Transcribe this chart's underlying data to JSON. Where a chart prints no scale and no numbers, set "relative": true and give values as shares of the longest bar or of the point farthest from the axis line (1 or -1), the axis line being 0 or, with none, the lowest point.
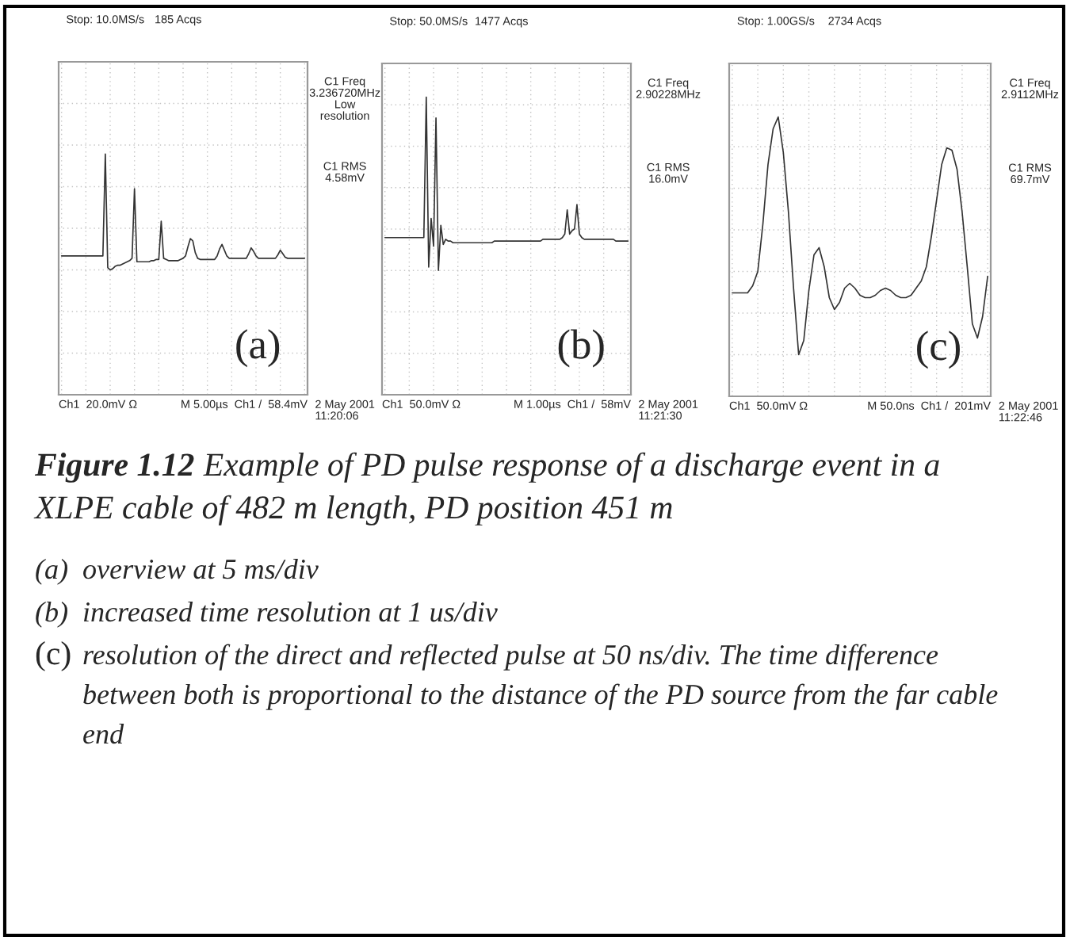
{
  "chart_data": [
    {
      "type": "line",
      "relative": true,
      "color": "#333333",
      "grid": true,
      "categories": [
        null,
        null,
        null,
        null,
        null,
        null,
        null,
        null,
        null,
        null,
        null,
        null,
        null,
        null,
        null,
        null,
        null,
        null,
        null,
        null,
        null,
        null,
        null,
        null,
        null,
        null,
        null,
        null,
        null,
        null,
        null,
        null,
        null,
        null,
        null,
        null,
        null,
        null,
        null,
        null,
        null,
        null,
        null,
        null,
        null,
        null,
        null,
        null,
        null,
        null,
        null,
        null,
        null,
        null,
        null,
        null,
        null,
        null,
        null,
        null,
        null,
        null,
        null,
        null,
        null,
        null,
        null,
        null,
        null,
        null,
        null,
        null,
        null,
        null,
        null,
        null,
        null,
        null,
        null,
        null,
        null,
        null,
        null,
        null,
        null,
        null,
        null,
        null,
        null,
        null,
        null,
        null,
        null,
        null,
        null,
        null,
        null,
        null,
        null,
        null,
        null
      ],
      "values": [
        0.12,
        0.12,
        0.12,
        0.12,
        0.12,
        0.12,
        0.12,
        0.12,
        0.12,
        0.12,
        0.12,
        0.12,
        0.12,
        0.12,
        0.12,
        0.12,
        0.12,
        0.12,
        1.0,
        0.02,
        0,
        0.01,
        0.03,
        0.04,
        0.04,
        0.05,
        0.06,
        0.07,
        0.08,
        0.1,
        0.7,
        0.07,
        0.07,
        0.07,
        0.07,
        0.07,
        0.07,
        0.08,
        0.08,
        0.09,
        0.09,
        0.42,
        0.1,
        0.09,
        0.08,
        0.08,
        0.08,
        0.08,
        0.08,
        0.09,
        0.1,
        0.12,
        0.2,
        0.27,
        0.25,
        0.15,
        0.1,
        0.09,
        0.09,
        0.09,
        0.09,
        0.09,
        0.09,
        0.09,
        0.12,
        0.18,
        0.22,
        0.17,
        0.12,
        0.1,
        0.1,
        0.1,
        0.1,
        0.1,
        0.1,
        0.1,
        0.1,
        0.14,
        0.19,
        0.16,
        0.12,
        0.1,
        0.1,
        0.1,
        0.1,
        0.1,
        0.1,
        0.1,
        0.1,
        0.13,
        0.17,
        0.14,
        0.11,
        0.1,
        0.1,
        0.1,
        0.1,
        0.1,
        0.1,
        0.1,
        0.1
      ],
      "annotations": [
        "Stop: 10.0MS/s",
        "185 Acqs",
        "C1 Freq\n3.236720MHz\nLow\nresolution",
        "C1 RMS\n4.58mV",
        "Ch1  20.0mV Ω",
        "M 5.00µs  Ch1 /  58.4mV",
        "2 May 2001\n11:20:06",
        "(a)"
      ]
    },
    {
      "type": "line",
      "relative": true,
      "color": "#333333",
      "grid": true,
      "categories": [
        null,
        null,
        null,
        null,
        null,
        null,
        null,
        null,
        null,
        null,
        null,
        null,
        null,
        null,
        null,
        null,
        null,
        null,
        null,
        null,
        null,
        null,
        null,
        null,
        null,
        null,
        null,
        null,
        null,
        null,
        null,
        null,
        null,
        null,
        null,
        null,
        null,
        null,
        null,
        null,
        null,
        null,
        null,
        null,
        null,
        null,
        null,
        null,
        null,
        null,
        null,
        null,
        null,
        null,
        null,
        null,
        null,
        null,
        null,
        null,
        null,
        null,
        null,
        null,
        null,
        null,
        null,
        null,
        null,
        null,
        null,
        null,
        null,
        null,
        null,
        null,
        null,
        null,
        null,
        null,
        null,
        null,
        null,
        null,
        null,
        null,
        null,
        null,
        null,
        null,
        null,
        null,
        null,
        null,
        null,
        null,
        null,
        null,
        null,
        null,
        null
      ],
      "values": [
        0.19,
        0.19,
        0.19,
        0.19,
        0.19,
        0.19,
        0.19,
        0.19,
        0.19,
        0.19,
        0.19,
        0.19,
        0.19,
        0.19,
        0.19,
        0.19,
        0.19,
        1.0,
        0.02,
        0.3,
        0.14,
        0.88,
        0,
        0.26,
        0.15,
        0.18,
        0.17,
        0.17,
        0.16,
        0.16,
        0.16,
        0.16,
        0.16,
        0.16,
        0.16,
        0.16,
        0.16,
        0.16,
        0.16,
        0.16,
        0.16,
        0.16,
        0.16,
        0.16,
        0.16,
        0.17,
        0.17,
        0.17,
        0.17,
        0.17,
        0.17,
        0.17,
        0.17,
        0.17,
        0.17,
        0.17,
        0.17,
        0.17,
        0.17,
        0.17,
        0.17,
        0.17,
        0.17,
        0.17,
        0.17,
        0.18,
        0.18,
        0.18,
        0.18,
        0.18,
        0.18,
        0.18,
        0.18,
        0.19,
        0.21,
        0.35,
        0.21,
        0.23,
        0.24,
        0.38,
        0.21,
        0.19,
        0.18,
        0.18,
        0.18,
        0.18,
        0.18,
        0.18,
        0.18,
        0.18,
        0.18,
        0.18,
        0.18,
        0.18,
        0.18,
        0.17,
        0.17,
        0.17,
        0.17,
        0.17,
        0.17
      ],
      "annotations": [
        "Stop: 50.0MS/s",
        "1477 Acqs",
        "C1 Freq\n2.90228MHz",
        "C1 RMS\n16.0mV",
        "Ch1  50.0mV Ω",
        "M 1.00µs  Ch1 /  58mV",
        "2 May 2001\n11:21:30",
        "(b)"
      ]
    },
    {
      "type": "line",
      "relative": true,
      "color": "#333333",
      "grid": true,
      "categories": [
        null,
        null,
        null,
        null,
        null,
        null,
        null,
        null,
        null,
        null,
        null,
        null,
        null,
        null,
        null,
        null,
        null,
        null,
        null,
        null,
        null,
        null,
        null,
        null,
        null,
        null,
        null,
        null,
        null,
        null,
        null,
        null,
        null,
        null,
        null,
        null,
        null,
        null,
        null,
        null,
        null,
        null,
        null,
        null,
        null,
        null,
        null,
        null,
        null,
        null,
        null
      ],
      "values": [
        0.26,
        0.26,
        0.26,
        0.26,
        0.29,
        0.35,
        0.55,
        0.8,
        0.95,
        1.0,
        0.85,
        0.6,
        0.28,
        0,
        0.06,
        0.27,
        0.42,
        0.45,
        0.37,
        0.24,
        0.19,
        0.22,
        0.28,
        0.3,
        0.28,
        0.25,
        0.24,
        0.24,
        0.25,
        0.27,
        0.28,
        0.27,
        0.25,
        0.24,
        0.24,
        0.25,
        0.28,
        0.31,
        0.37,
        0.5,
        0.65,
        0.8,
        0.87,
        0.86,
        0.78,
        0.6,
        0.37,
        0.13,
        0.07,
        0.16,
        0.33
      ],
      "annotations": [
        "Stop: 1.00GS/s",
        "2734 Acqs",
        "C1 Freq\n2.9112MHz",
        "C1 RMS\n69.7mV",
        "Ch1  50.0mV Ω",
        "M 50.0ns  Ch1 /  201mV",
        "2 May 2001\n11:22:46",
        "(c)",
        "Figure 1.12",
        "Example of PD pulse response of a discharge event in a XLPE cable of 482 m length, PD position 451 m",
        "(a)",
        "overview at 5 ms/div",
        "(b)",
        "increased time resolution at 1 us/div",
        "(c)",
        "resolution of the direct and reflected pulse at 50 ns/div. The time difference between both is proportional to the distance of the PD source from the far cable end"
      ]
    }
  ]
}
